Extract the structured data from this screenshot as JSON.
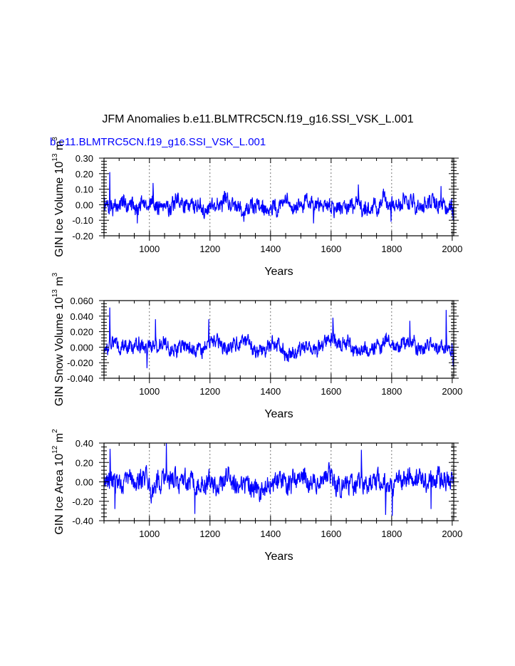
{
  "title": "JFM Anomalies b.e11.BLMTRC5CN.f19_g16.SSI_VSK_L.001",
  "subtitle": "b.e11.BLMTRC5CN.f19_g16.SSI_VSK_L.001",
  "colors": {
    "series": "#0000ff",
    "subtitle": "#0000ff",
    "axes": "#000000",
    "grid": "#555555"
  },
  "chart_data": [
    {
      "type": "line",
      "xlabel": "Years",
      "ylabel": {
        "text": "GIN Ice Volume 10",
        "exp1": "13",
        "unit": " m",
        "exp2": "3"
      },
      "xlim": [
        850,
        2005
      ],
      "ylim": [
        -0.2,
        0.3
      ],
      "xticks": [
        1000,
        1200,
        1400,
        1600,
        1800,
        2000
      ],
      "yticks": [
        "-0.20",
        "-0.10",
        "0.00",
        "0.10",
        "0.20",
        "0.30"
      ],
      "grid": "vertical dotted at major x ticks",
      "series": [
        {
          "amp": 0.055,
          "peaks": [
            [
              869,
              0.21
            ],
            [
              960,
              -0.12
            ],
            [
              1012,
              0.14
            ],
            [
              1542,
              -0.12
            ],
            [
              1690,
              0.13
            ],
            [
              1798,
              -0.11
            ],
            [
              1963,
              0.12
            ],
            [
              2003,
              -0.1
            ]
          ],
          "seed": 7
        }
      ]
    },
    {
      "type": "line",
      "xlabel": "Years",
      "ylabel": {
        "text": "GIN Snow Volume 10",
        "exp1": "13",
        "unit": " m",
        "exp2": "3"
      },
      "xlim": [
        850,
        2005
      ],
      "ylim": [
        -0.04,
        0.06
      ],
      "xticks": [
        1000,
        1200,
        1400,
        1600,
        1800,
        2000
      ],
      "yticks": [
        "-0.040",
        "-0.020",
        "0.000",
        "0.020",
        "0.040",
        "0.060"
      ],
      "grid": "vertical dotted at major x ticks",
      "series": [
        {
          "amp": 0.01,
          "peaks": [
            [
              869,
              0.051
            ],
            [
              992,
              -0.027
            ],
            [
              1020,
              0.036
            ],
            [
              1196,
              0.036
            ],
            [
              1606,
              0.038
            ],
            [
              1860,
              0.034
            ],
            [
              1980,
              0.048
            ],
            [
              2003,
              -0.025
            ]
          ],
          "seed": 13
        }
      ]
    },
    {
      "type": "line",
      "xlabel": "Years",
      "ylabel": {
        "text": "GIN Ice Area 10",
        "exp1": "12",
        "unit": " m",
        "exp2": "2"
      },
      "xlim": [
        850,
        2005
      ],
      "ylim": [
        -0.4,
        0.4
      ],
      "xticks": [
        1000,
        1200,
        1400,
        1600,
        1800,
        2000
      ],
      "yticks": [
        "-0.40",
        "-0.20",
        "0.00",
        "0.20",
        "0.40"
      ],
      "grid": "vertical dotted at major x ticks",
      "series": [
        {
          "amp": 0.11,
          "peaks": [
            [
              870,
              0.34
            ],
            [
              886,
              -0.28
            ],
            [
              1056,
              0.4
            ],
            [
              1150,
              -0.33
            ],
            [
              1700,
              0.33
            ],
            [
              1780,
              -0.34
            ],
            [
              1802,
              -0.35
            ],
            [
              1930,
              -0.28
            ]
          ],
          "seed": 29
        }
      ]
    }
  ]
}
